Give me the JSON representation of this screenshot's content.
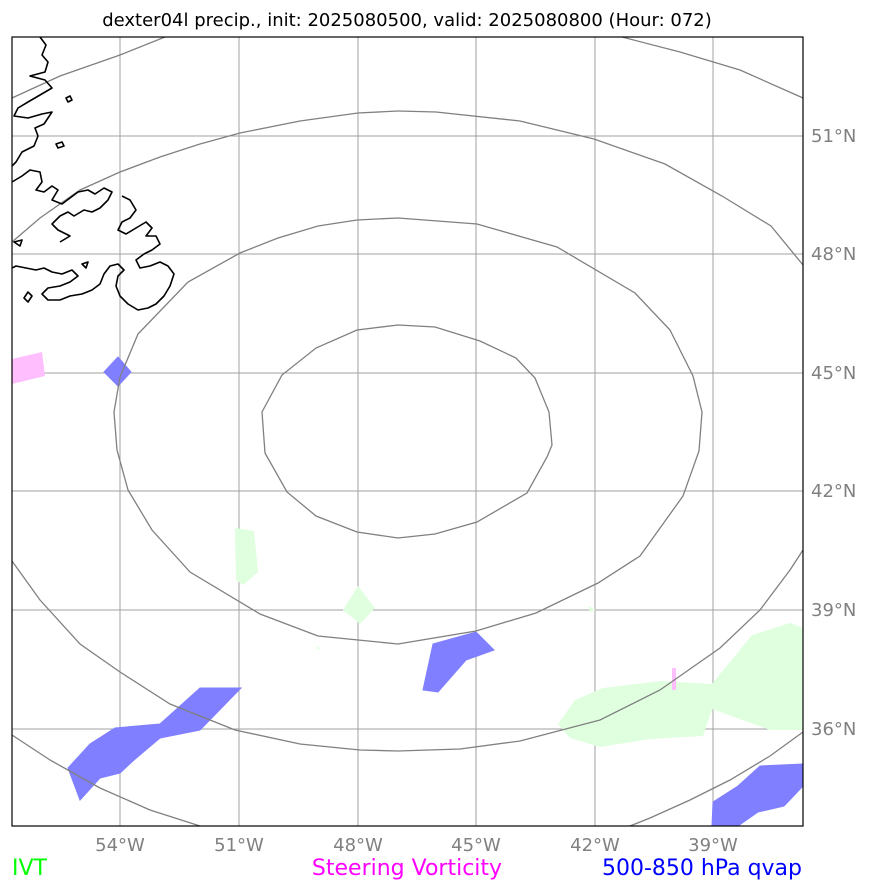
{
  "title": "dexter04l precip., init: 2025080500, valid: 2025080800 (Hour: 072)",
  "lon_ticks": [
    "54°W",
    "51°W",
    "48°W",
    "45°W",
    "42°W",
    "39°W"
  ],
  "lat_ticks": [
    "51°N",
    "48°N",
    "45°N",
    "42°N",
    "39°N",
    "36°N"
  ],
  "legend": {
    "ivt": {
      "label": "IVT",
      "color": "#00ff00"
    },
    "steering_vorticity": {
      "label": "Steering Vorticity",
      "color": "#ff00ff"
    },
    "qvap": {
      "label": "500-850 hPa qvap",
      "color": "#0000ff"
    }
  },
  "colors": {
    "gridline": "#a0a0a0",
    "contour": "#808080",
    "coastline": "#000000",
    "qvap_fill": "#7f7fff",
    "ivt_fill": "#dfffdf",
    "vorticity_fill": "#ffbfff"
  }
}
